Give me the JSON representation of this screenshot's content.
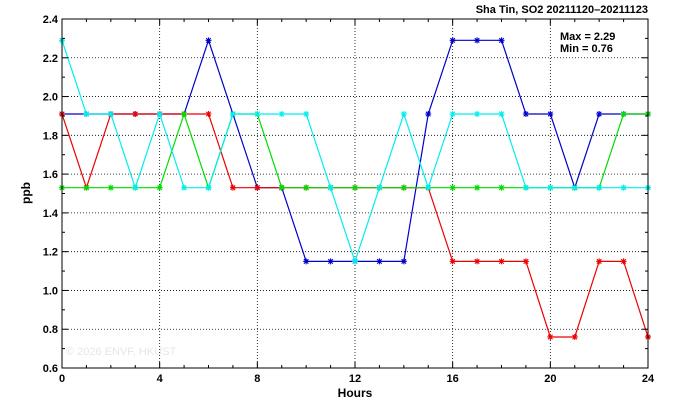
{
  "chart_data": {
    "type": "line",
    "title": "Sha Tin, SO2 20211120–20211123",
    "stats": {
      "max_label": "Max = 2.29",
      "min_label": "Min = 0.76"
    },
    "xlabel": "Hours",
    "ylabel": "ppb",
    "xlim": [
      0,
      24
    ],
    "ylim": [
      0.6,
      2.4
    ],
    "x_ticks": [
      0,
      4,
      8,
      12,
      16,
      20,
      24
    ],
    "y_ticks": [
      0.6,
      0.8,
      1.0,
      1.2,
      1.4,
      1.6,
      1.8,
      2.0,
      2.2,
      2.4
    ],
    "y_tick_labels": [
      "0.6",
      "0.8",
      "1.0",
      "1.2",
      "1.4",
      "1.6",
      "1.8",
      "2.0",
      "2.2",
      "2.4"
    ],
    "grid": true,
    "watermark": "© 2026 ENVF, HKUST",
    "x": [
      0,
      1,
      2,
      3,
      4,
      5,
      6,
      7,
      8,
      9,
      10,
      11,
      12,
      13,
      14,
      15,
      16,
      17,
      18,
      19,
      20,
      21,
      22,
      23,
      24
    ],
    "series": [
      {
        "color": "#0000cc",
        "values": [
          1.91,
          1.91,
          1.91,
          1.91,
          1.91,
          1.91,
          2.29,
          1.91,
          1.53,
          1.53,
          1.15,
          1.15,
          1.15,
          1.15,
          1.15,
          1.91,
          2.29,
          2.29,
          2.29,
          1.91,
          1.91,
          1.53,
          1.91,
          1.91,
          1.91
        ]
      },
      {
        "color": "#ee0000",
        "values": [
          1.91,
          1.53,
          1.91,
          1.91,
          1.91,
          1.91,
          1.91,
          1.53,
          1.53,
          1.53,
          1.53,
          1.53,
          1.53,
          1.53,
          1.53,
          1.53,
          1.15,
          1.15,
          1.15,
          1.15,
          0.76,
          0.76,
          1.15,
          1.15,
          0.76
        ]
      },
      {
        "color": "#00dd00",
        "values": [
          1.53,
          1.53,
          1.53,
          1.53,
          1.53,
          1.91,
          1.53,
          1.91,
          1.91,
          1.53,
          1.53,
          1.53,
          1.53,
          1.53,
          1.53,
          1.53,
          1.53,
          1.53,
          1.53,
          1.53,
          1.53,
          1.53,
          1.53,
          1.91,
          1.91
        ]
      },
      {
        "color": "#00eeee",
        "values": [
          2.29,
          1.91,
          1.91,
          1.53,
          1.91,
          1.53,
          1.53,
          1.91,
          1.91,
          1.91,
          1.91,
          1.53,
          1.15,
          1.53,
          1.91,
          1.53,
          1.91,
          1.91,
          1.91,
          1.53,
          1.53,
          1.53,
          1.53,
          1.53,
          1.53
        ]
      }
    ]
  }
}
